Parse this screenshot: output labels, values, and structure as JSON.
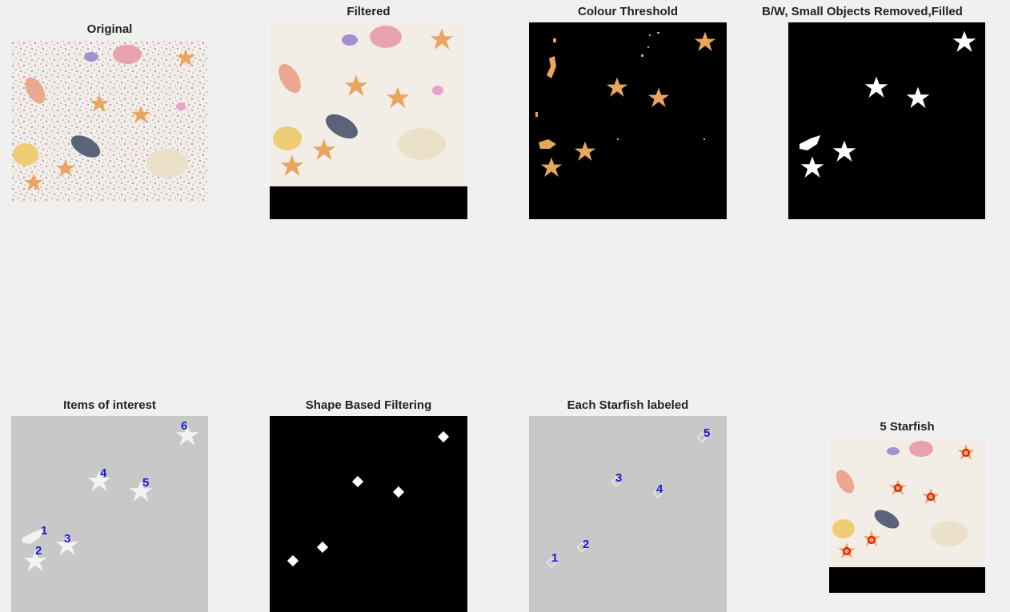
{
  "panels": {
    "original": {
      "title": "Original"
    },
    "filtered": {
      "title": "Filtered"
    },
    "colour": {
      "title": "Colour Threshold"
    },
    "bw": {
      "title": "B/W, Small Objects Removed,Filled"
    },
    "items": {
      "title": "Items of interest",
      "labels": [
        "1",
        "2",
        "3",
        "4",
        "5",
        "6"
      ]
    },
    "shape": {
      "title": "Shape Based Filtering"
    },
    "each": {
      "title": "Each Starfish labeled",
      "labels": [
        "1",
        "2",
        "3",
        "4",
        "5"
      ]
    },
    "result": {
      "title": "5 Starfish"
    }
  },
  "colors": {
    "figure_bg": "#f0f0f0",
    "sand": "#f1ebe6",
    "starfish": "#e9a55e",
    "label_text": "#1a1adc",
    "marker": "#e31010",
    "gray_bg": "#c8c8c8"
  }
}
